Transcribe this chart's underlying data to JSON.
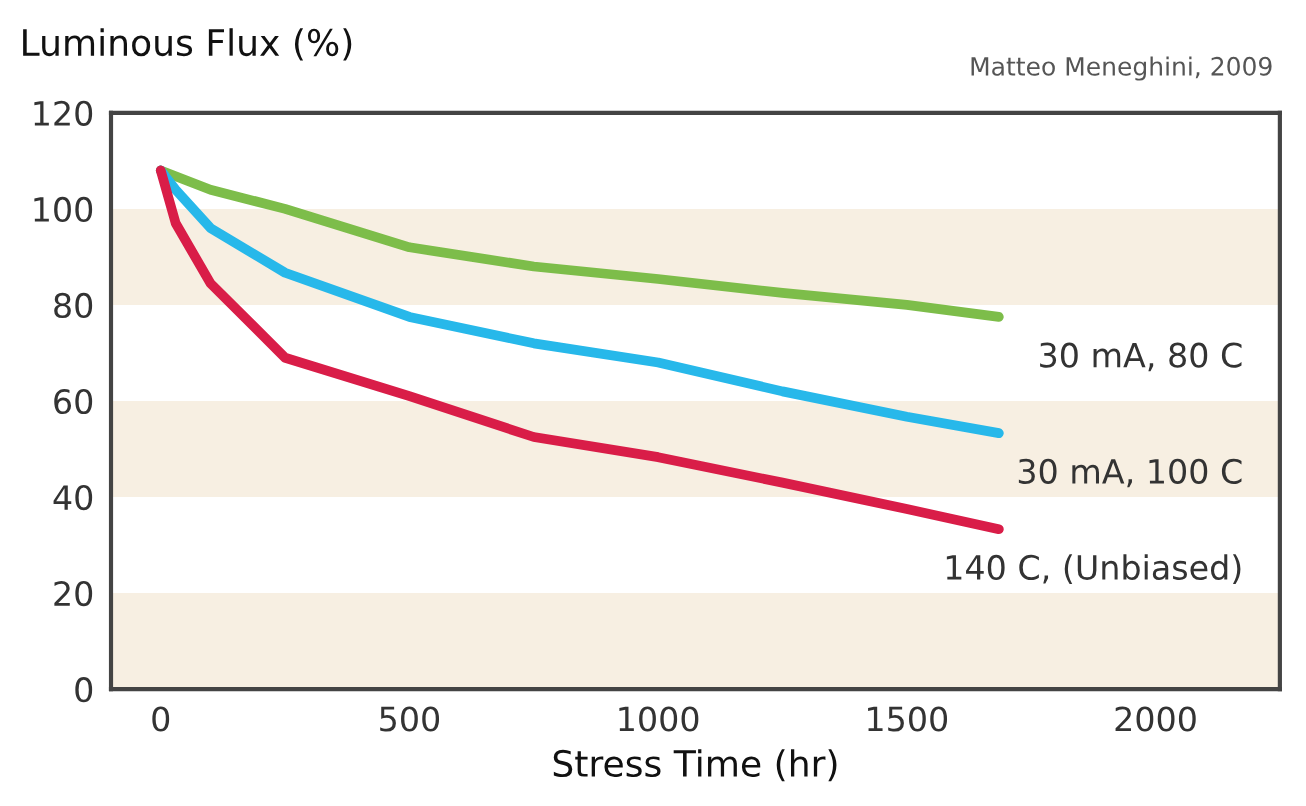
{
  "chart_data": {
    "type": "line",
    "ylabel": "Luminous Flux (%)",
    "xlabel": "Stress Time (hr)",
    "annotations": [
      "Matteo Meneghini, 2009"
    ],
    "xlim": [
      -100,
      2250
    ],
    "xticks": [
      0,
      500,
      1000,
      1500,
      2000
    ],
    "ylim": [
      0,
      120
    ],
    "yticks": [
      0,
      20,
      40,
      60,
      80,
      100,
      120
    ],
    "grid": false,
    "legend": false,
    "marker": "none",
    "line_style": "solid",
    "bands": [
      {
        "axis": "y",
        "from": 0,
        "to": 20,
        "color": "#f7efe2"
      },
      {
        "axis": "y",
        "from": 40,
        "to": 60,
        "color": "#f7efe2"
      },
      {
        "axis": "y",
        "from": 80,
        "to": 100,
        "color": "#f7efe2"
      }
    ],
    "series": [
      {
        "name": "30 mA, 80 C",
        "color": "#7dbd4a",
        "x": [
          0,
          100,
          250,
          500,
          750,
          1000,
          1250,
          1500,
          1685
        ],
        "values": [
          108,
          104,
          100,
          92,
          88,
          85.4,
          82.5,
          80,
          77.5
        ]
      },
      {
        "name": "30 mA, 100 C",
        "color": "#27b8ea",
        "x": [
          0,
          30,
          100,
          250,
          500,
          750,
          1000,
          1250,
          1500,
          1685
        ],
        "values": [
          108,
          104,
          96,
          86.7,
          77.5,
          72,
          68,
          62,
          56.7,
          53.3
        ]
      },
      {
        "name": "140 C, (Unbiased)",
        "color": "#d91d48",
        "x": [
          0,
          30,
          100,
          250,
          500,
          750,
          1000,
          1250,
          1500,
          1685
        ],
        "values": [
          108,
          97,
          84.5,
          69,
          61,
          52.5,
          48.3,
          43,
          37.5,
          33.3
        ]
      }
    ]
  }
}
